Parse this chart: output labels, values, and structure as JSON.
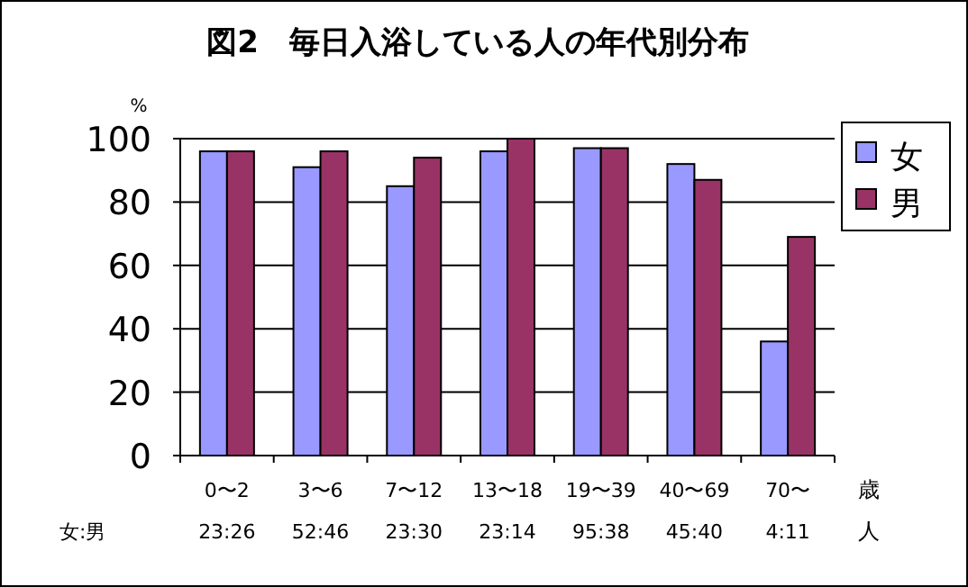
{
  "chart_data": {
    "type": "bar",
    "title": "図2　毎日入浴している人の年代別分布",
    "ylabel": "%",
    "xlabel": "歳",
    "categories": [
      "0〜2",
      "3〜6",
      "7〜12",
      "13〜18",
      "19〜39",
      "40〜69",
      "70〜"
    ],
    "series": [
      {
        "name": "女",
        "color": "#9999ff",
        "values": [
          96,
          91,
          85,
          96,
          97,
          92,
          36
        ]
      },
      {
        "name": "男",
        "color": "#993366",
        "values": [
          96,
          96,
          94,
          100,
          97,
          87,
          69
        ]
      }
    ],
    "ylim": [
      0,
      100
    ],
    "yticks": [
      0,
      20,
      40,
      60,
      80,
      100
    ],
    "grid": "y",
    "legend": "right",
    "annotations": [
      "女:男",
      "23:26",
      "52:46",
      "23:30",
      "23:14",
      "95:38",
      "45:40",
      "4:11",
      "人"
    ]
  }
}
